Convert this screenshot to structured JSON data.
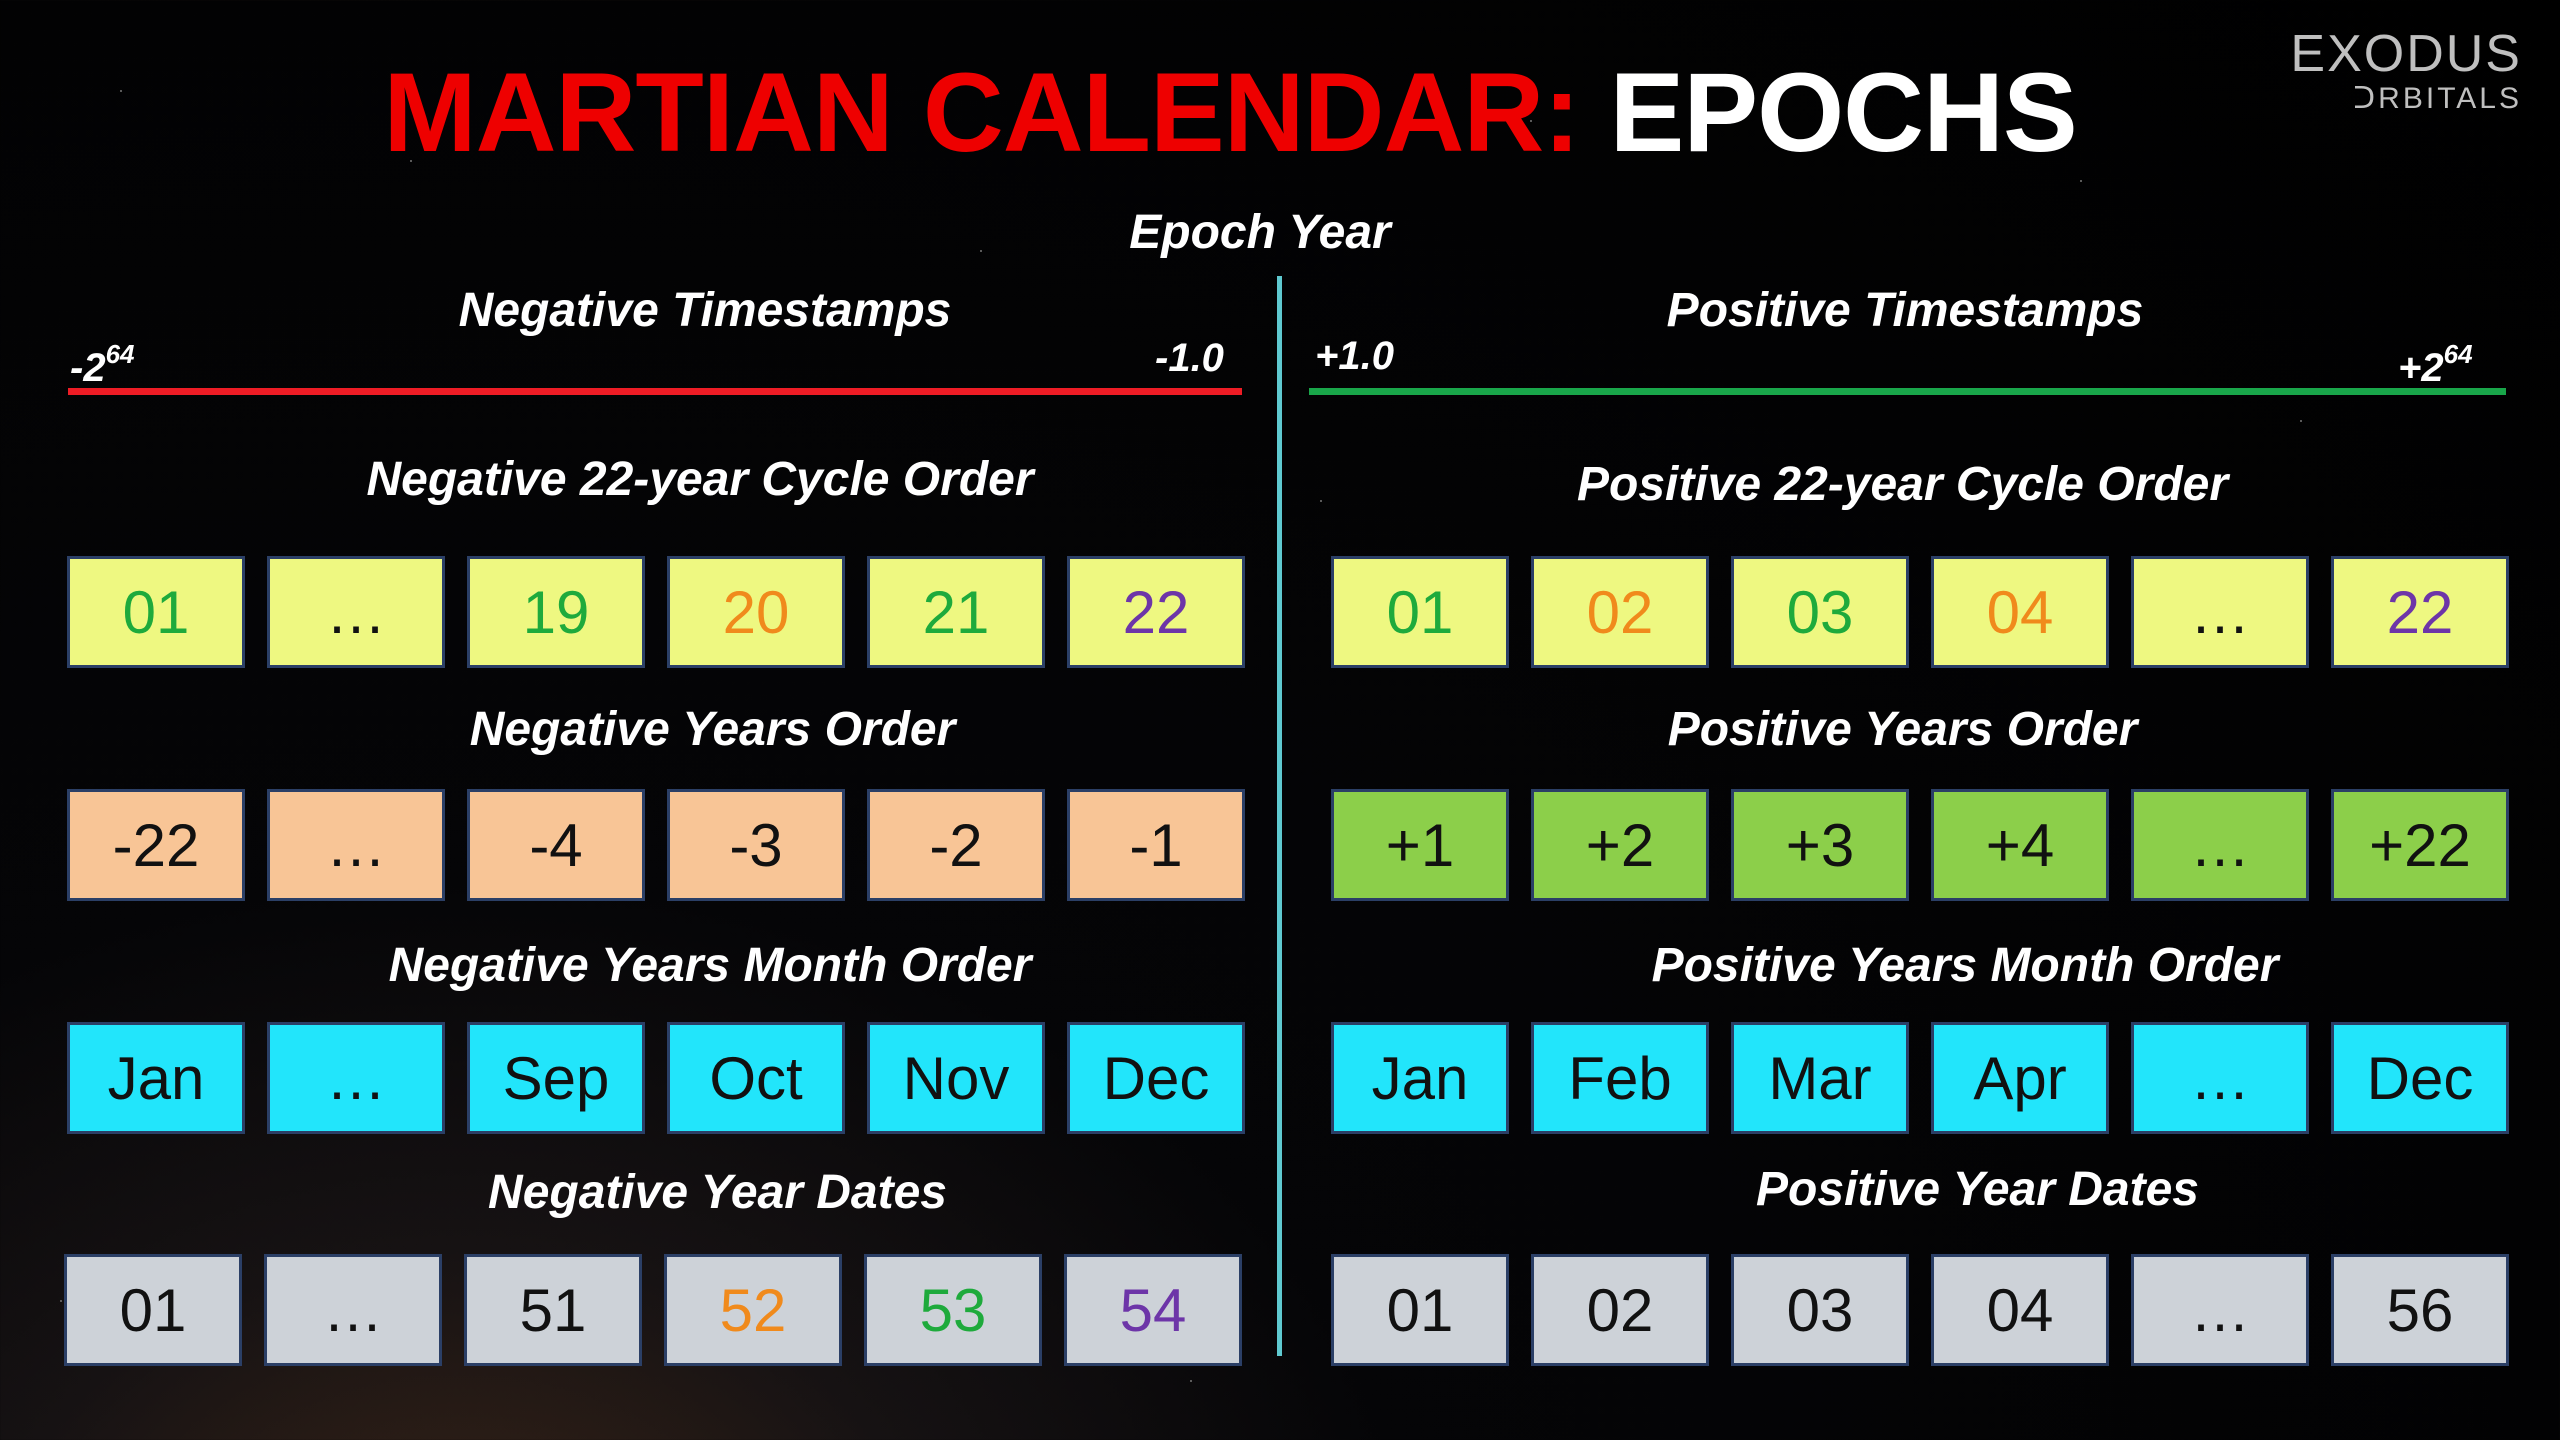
{
  "title": {
    "part1": "MARTIAN CALENDAR:",
    "part2": "EPOCHS"
  },
  "logo": {
    "line1": "EXODUS",
    "line2": "ᑐRBITALS"
  },
  "epoch_year_label": "Epoch Year",
  "colors": {
    "negative_line": "#ee1c25",
    "positive_line": "#19a64a",
    "divider": "#5fc9d0",
    "green_text": "#1eaa3c",
    "orange_text": "#f08a1c",
    "purple_text": "#6d35a8",
    "black_text": "#111111"
  },
  "negative": {
    "timestamps_label": "Negative Timestamps",
    "start_base": "-2",
    "start_exp": "64",
    "end_label": "-1.0",
    "cycle_label": "Negative 22-year Cycle Order",
    "cycle": [
      {
        "text": "01",
        "color": "#1eaa3c"
      },
      {
        "text": "…",
        "color": "#111111"
      },
      {
        "text": "19",
        "color": "#1eaa3c"
      },
      {
        "text": "20",
        "color": "#f08a1c"
      },
      {
        "text": "21",
        "color": "#1eaa3c"
      },
      {
        "text": "22",
        "color": "#6d35a8"
      }
    ],
    "years_label": "Negative Years Order",
    "years": [
      {
        "text": "-22",
        "color": "#111111"
      },
      {
        "text": "…",
        "color": "#111111"
      },
      {
        "text": "-4",
        "color": "#111111"
      },
      {
        "text": "-3",
        "color": "#111111"
      },
      {
        "text": "-2",
        "color": "#111111"
      },
      {
        "text": "-1",
        "color": "#111111"
      }
    ],
    "months_label": "Negative Years Month Order",
    "months": [
      {
        "text": "Jan",
        "color": "#111111"
      },
      {
        "text": "…",
        "color": "#111111"
      },
      {
        "text": "Sep",
        "color": "#111111"
      },
      {
        "text": "Oct",
        "color": "#111111"
      },
      {
        "text": "Nov",
        "color": "#111111"
      },
      {
        "text": "Dec",
        "color": "#111111"
      }
    ],
    "dates_label": "Negative Year Dates",
    "dates": [
      {
        "text": "01",
        "color": "#111111"
      },
      {
        "text": "…",
        "color": "#111111"
      },
      {
        "text": "51",
        "color": "#111111"
      },
      {
        "text": "52",
        "color": "#f08a1c"
      },
      {
        "text": "53",
        "color": "#1eaa3c"
      },
      {
        "text": "54",
        "color": "#6d35a8"
      }
    ]
  },
  "positive": {
    "timestamps_label": "Positive Timestamps",
    "start_label": "+1.0",
    "end_base": "+2",
    "end_exp": "64",
    "cycle_label": "Positive 22-year Cycle Order",
    "cycle": [
      {
        "text": "01",
        "color": "#1eaa3c"
      },
      {
        "text": "02",
        "color": "#f08a1c"
      },
      {
        "text": "03",
        "color": "#1eaa3c"
      },
      {
        "text": "04",
        "color": "#f08a1c"
      },
      {
        "text": "…",
        "color": "#111111"
      },
      {
        "text": "22",
        "color": "#6d35a8"
      }
    ],
    "years_label": "Positive Years Order",
    "years": [
      {
        "text": "+1",
        "color": "#111111"
      },
      {
        "text": "+2",
        "color": "#111111"
      },
      {
        "text": "+3",
        "color": "#111111"
      },
      {
        "text": "+4",
        "color": "#111111"
      },
      {
        "text": "…",
        "color": "#111111"
      },
      {
        "text": "+22",
        "color": "#111111"
      }
    ],
    "months_label": "Positive Years Month Order",
    "months": [
      {
        "text": "Jan",
        "color": "#111111"
      },
      {
        "text": "Feb",
        "color": "#111111"
      },
      {
        "text": "Mar",
        "color": "#111111"
      },
      {
        "text": "Apr",
        "color": "#111111"
      },
      {
        "text": "…",
        "color": "#111111"
      },
      {
        "text": "Dec",
        "color": "#111111"
      }
    ],
    "dates_label": "Positive Year Dates",
    "dates": [
      {
        "text": "01",
        "color": "#111111"
      },
      {
        "text": "02",
        "color": "#111111"
      },
      {
        "text": "03",
        "color": "#111111"
      },
      {
        "text": "04",
        "color": "#111111"
      },
      {
        "text": "…",
        "color": "#111111"
      },
      {
        "text": "56",
        "color": "#111111"
      }
    ]
  }
}
